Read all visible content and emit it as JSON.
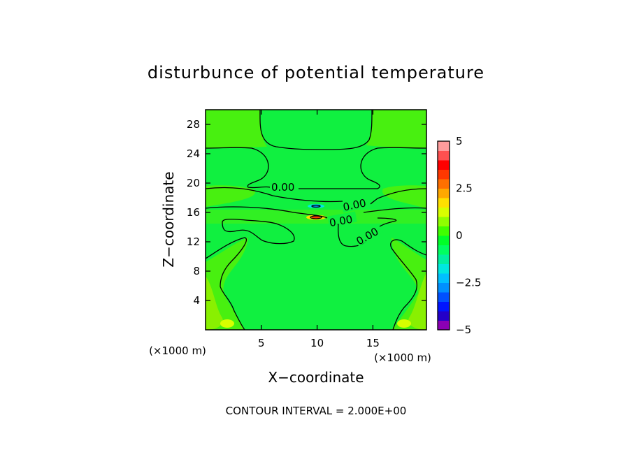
{
  "chart_data": {
    "type": "heatmap",
    "title": "disturbunce of potential temperature",
    "xlabel": "X−coordinate",
    "ylabel": "Z−coordinate",
    "x_unit": "(×1000 m)",
    "y_unit": "(×1000 m)",
    "xlim": [
      0,
      19.8
    ],
    "ylim": [
      0,
      30
    ],
    "x_ticks": [
      5,
      10,
      15
    ],
    "y_ticks": [
      4,
      8,
      12,
      16,
      20,
      24,
      28
    ],
    "contour_interval_text": "CONTOUR INTERVAL = 2.000E+00",
    "contour_labels": [
      "0.00",
      "0.00",
      "0.00",
      "0.00"
    ],
    "colorbar": {
      "min": -5,
      "max": 5,
      "ticks": [
        5,
        2.5,
        0,
        -2.5,
        -5
      ],
      "tick_labels": [
        "5",
        "2.5",
        "0",
        "−2.5",
        "−5"
      ],
      "colors": [
        "#8b00b4",
        "#2400c8",
        "#0014ff",
        "#0050ff",
        "#0090ff",
        "#00c0ff",
        "#00e8e0",
        "#00f0a0",
        "#00ff60",
        "#00ff28",
        "#40ff00",
        "#90ff00",
        "#d8ff00",
        "#ffe000",
        "#ffa800",
        "#ff7000",
        "#ff3800",
        "#ff0000",
        "#ff5050",
        "#ff9c9c"
      ]
    }
  }
}
